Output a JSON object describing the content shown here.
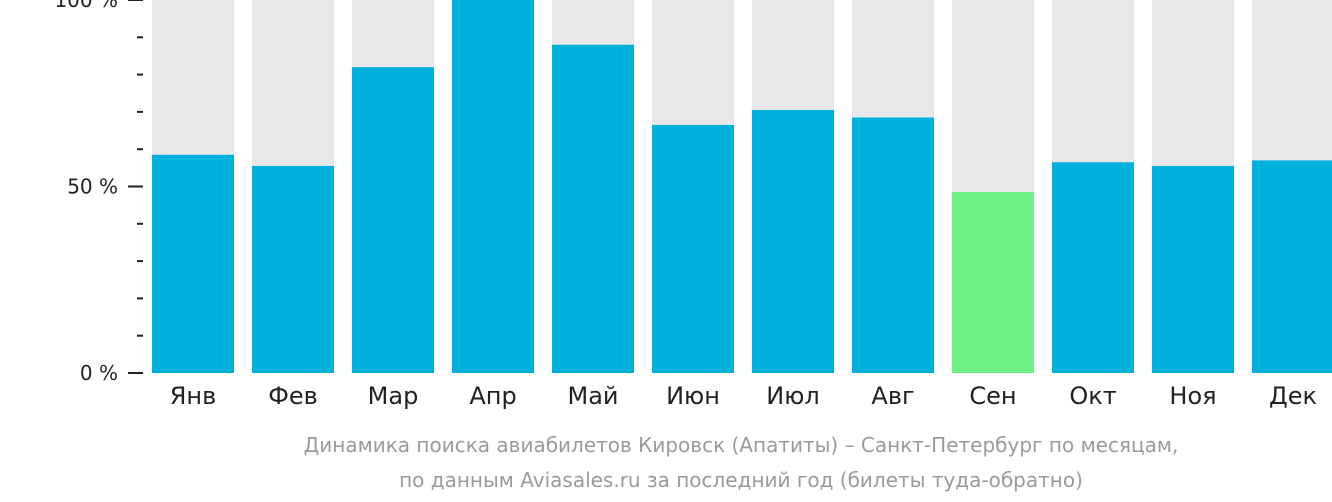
{
  "chart_data": {
    "type": "bar",
    "categories": [
      "Янв",
      "Фев",
      "Мар",
      "Апр",
      "Май",
      "Июн",
      "Июл",
      "Авг",
      "Сен",
      "Окт",
      "Ноя",
      "Дек"
    ],
    "values": [
      58.5,
      55.5,
      82,
      100,
      88,
      66.5,
      70.5,
      68.5,
      48.5,
      56.5,
      55.5,
      57
    ],
    "highlight_index": 8,
    "ylim": [
      0,
      100
    ],
    "yticks": [
      {
        "value": 0,
        "label": "0 %"
      },
      {
        "value": 50,
        "label": "50 %"
      },
      {
        "value": 100,
        "label": "100 %"
      }
    ],
    "minor_tick_step": 10,
    "xlabel": "",
    "ylabel": "",
    "grid": false,
    "colors": {
      "bar": "#00b0dd",
      "highlight": "#6ef286",
      "track": "#e8e8e8",
      "axis": "#222222"
    }
  },
  "caption": {
    "line1": "Динамика поиска авиабилетов Кировск (Апатиты) – Санкт-Петербург по месяцам,",
    "line2": "по данным Aviasales.ru за последний год (билеты туда-обратно)"
  }
}
